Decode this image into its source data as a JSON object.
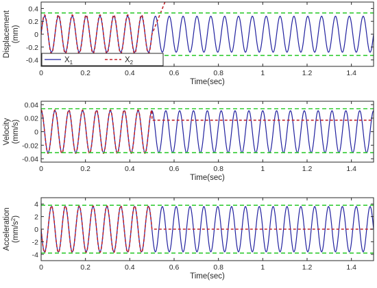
{
  "chart_data": [
    {
      "type": "line",
      "xlabel": "Time(sec)",
      "ylabel_lines": [
        "Displacement",
        "(mm)"
      ],
      "xlim": [
        0,
        1.5
      ],
      "ylim": [
        -0.5,
        0.5
      ],
      "xticks": [
        0,
        0.2,
        0.4,
        0.6,
        0.8,
        1,
        1.2,
        1.4
      ],
      "xtick_labels": [
        "0",
        "0.2",
        "0.4",
        "0.6",
        "0.8",
        "1",
        "1.2",
        "1.4"
      ],
      "yticks": [
        -0.4,
        -0.2,
        0,
        0.2,
        0.4
      ],
      "ytick_labels": [
        "-0.4",
        "-0.2",
        "0",
        "0.2",
        "0.4"
      ],
      "threshold_lines": [
        0.33,
        -0.33
      ],
      "switch_time": 0.5,
      "series": [
        {
          "name": "X1",
          "name_main": "X",
          "name_sub": "1",
          "style": "solid",
          "color": "#1f1f9e",
          "amplitude": 0.28,
          "frequency_hz": 16,
          "phase": "sine",
          "behavior": "continuous oscillation to t = 1.5"
        },
        {
          "name": "X2",
          "name_main": "X",
          "name_sub": "2",
          "style": "dashed",
          "color": "#c0222a",
          "amplitude": 0.3,
          "frequency_hz": 16,
          "phase": "sine",
          "behavior": "follows X1 until t = 0.5, then rises linearly beyond the axis top",
          "after_switch": "ramp",
          "ramp_slope": 8.5
        }
      ],
      "legend": {
        "placement": "bottom-left",
        "entries": [
          "X1",
          "X2"
        ]
      }
    },
    {
      "type": "line",
      "xlabel": "Time(sec)",
      "ylabel_lines": [
        "Velocity",
        "(mm/s)"
      ],
      "xlim": [
        0,
        1.5
      ],
      "ylim": [
        -0.045,
        0.045
      ],
      "xticks": [
        0,
        0.2,
        0.4,
        0.6,
        0.8,
        1,
        1.2,
        1.4
      ],
      "xtick_labels": [
        "0",
        "0.2",
        "0.4",
        "0.6",
        "0.8",
        "1",
        "1.2",
        "1.4"
      ],
      "yticks": [
        -0.04,
        -0.02,
        0,
        0.02,
        0.04
      ],
      "ytick_labels": [
        "-0.04",
        "-0.02",
        "0",
        "0.02",
        "0.04"
      ],
      "threshold_lines": [
        0.034,
        -0.031
      ],
      "switch_time": 0.5,
      "series": [
        {
          "name": "X1",
          "style": "solid",
          "color": "#1f1f9e",
          "amplitude": 0.031,
          "frequency_hz": 16,
          "phase": "cosine",
          "behavior": "continuous oscillation to t = 1.5"
        },
        {
          "name": "X2",
          "style": "dashed",
          "color": "#c0222a",
          "amplitude": 0.032,
          "frequency_hz": 16,
          "phase": "cosine",
          "behavior": "follows X1 until t = 0.5, then constant",
          "after_switch": "constant",
          "constant_value": 0.017
        }
      ]
    },
    {
      "type": "line",
      "xlabel": "Time(sec)",
      "ylabel_lines": [
        "Acceleration",
        "(mm/s²)"
      ],
      "ylabel_main": "(mm/s",
      "ylabel_sup": "2",
      "ylabel_end": ")",
      "xlim": [
        0,
        1.5
      ],
      "ylim": [
        -5,
        5
      ],
      "xticks": [
        0,
        0.2,
        0.4,
        0.6,
        0.8,
        1,
        1.2,
        1.4
      ],
      "xtick_labels": [
        "0",
        "0.2",
        "0.4",
        "0.6",
        "0.8",
        "1",
        "1.2",
        "1.4"
      ],
      "yticks": [
        -4,
        -2,
        0,
        2,
        4
      ],
      "ytick_labels": [
        "-4",
        "-2",
        "0",
        "2",
        "4"
      ],
      "threshold_lines": [
        3.8,
        -3.8
      ],
      "switch_time": 0.5,
      "series": [
        {
          "name": "X1",
          "style": "solid",
          "color": "#1f1f9e",
          "amplitude": 3.6,
          "frequency_hz": 16,
          "phase": "neg-sine",
          "behavior": "continuous oscillation to t = 1.5"
        },
        {
          "name": "X2",
          "style": "dashed",
          "color": "#c0222a",
          "amplitude": 3.7,
          "frequency_hz": 16,
          "phase": "neg-sine",
          "behavior": "follows X1 until t = 0.5, then constant",
          "after_switch": "constant",
          "constant_value": 0
        }
      ]
    }
  ],
  "colors": {
    "x1": "#1f1f9e",
    "x2": "#c0222a",
    "threshold": "#33cc33",
    "axis": "#262626"
  }
}
